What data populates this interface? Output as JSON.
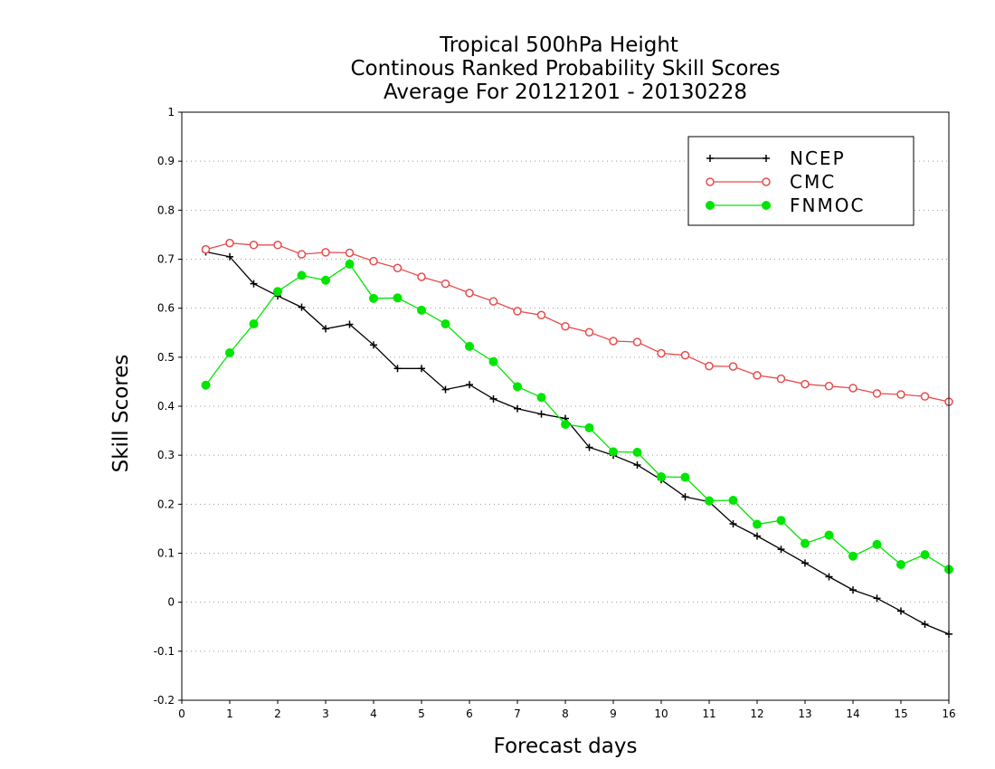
{
  "chart_data": {
    "type": "line",
    "title": [
      "Tropical 500hPa Height",
      "Continous Ranked Probability Skill Scores",
      "Average For 20121201 - 20130228"
    ],
    "xlabel": "Forecast days",
    "ylabel": "Skill Scores",
    "xlim": [
      0,
      16
    ],
    "ylim": [
      -0.2,
      1
    ],
    "xticks": [
      0,
      1,
      2,
      3,
      4,
      5,
      6,
      7,
      8,
      9,
      10,
      11,
      12,
      13,
      14,
      15,
      16
    ],
    "yticks": [
      -0.2,
      -0.1,
      0,
      0.1,
      0.2,
      0.3,
      0.4,
      0.5,
      0.6,
      0.7,
      0.8,
      0.9,
      1
    ],
    "ytick_labels": [
      "-0.2",
      "-0.1",
      "0",
      "0.1",
      "0.2",
      "0.3",
      "0.4",
      "0.5",
      "0.6",
      "0.7",
      "0.8",
      "0.9",
      "1"
    ],
    "grid": "horizontal dotted",
    "legend": "top-right",
    "x": [
      0.5,
      1,
      1.5,
      2,
      2.5,
      3,
      3.5,
      4,
      4.5,
      5,
      5.5,
      6,
      6.5,
      7,
      7.5,
      8,
      8.5,
      9,
      9.5,
      10,
      10.5,
      11,
      11.5,
      12,
      12.5,
      13,
      13.5,
      14,
      14.5,
      15,
      15.5,
      16
    ],
    "series": [
      {
        "name": "NCEP",
        "color": "#000000",
        "marker": "plus",
        "values": [
          0.715,
          0.705,
          0.65,
          0.625,
          0.602,
          0.558,
          0.567,
          0.525,
          0.477,
          0.477,
          0.434,
          0.444,
          0.415,
          0.395,
          0.384,
          0.375,
          0.316,
          0.3,
          0.28,
          0.25,
          0.215,
          0.205,
          0.16,
          0.135,
          0.108,
          0.08,
          0.052,
          0.025,
          0.008,
          -0.018,
          -0.045,
          -0.065
        ]
      },
      {
        "name": "CMC",
        "color": "#e84c4c",
        "marker": "open-circle",
        "values": [
          0.72,
          0.733,
          0.729,
          0.729,
          0.71,
          0.714,
          0.713,
          0.696,
          0.682,
          0.664,
          0.65,
          0.631,
          0.614,
          0.594,
          0.586,
          0.563,
          0.551,
          0.533,
          0.531,
          0.508,
          0.504,
          0.482,
          0.481,
          0.463,
          0.456,
          0.445,
          0.441,
          0.437,
          0.426,
          0.424,
          0.42,
          0.409
        ]
      },
      {
        "name": "FNMOC",
        "color": "#00e600",
        "marker": "filled-circle",
        "values": [
          0.443,
          0.509,
          0.568,
          0.634,
          0.667,
          0.657,
          0.69,
          0.62,
          0.621,
          0.596,
          0.568,
          0.522,
          0.491,
          0.44,
          0.418,
          0.363,
          0.356,
          0.307,
          0.306,
          0.256,
          0.255,
          0.207,
          0.208,
          0.159,
          0.167,
          0.12,
          0.137,
          0.094,
          0.118,
          0.077,
          0.097,
          0.067
        ]
      }
    ]
  }
}
